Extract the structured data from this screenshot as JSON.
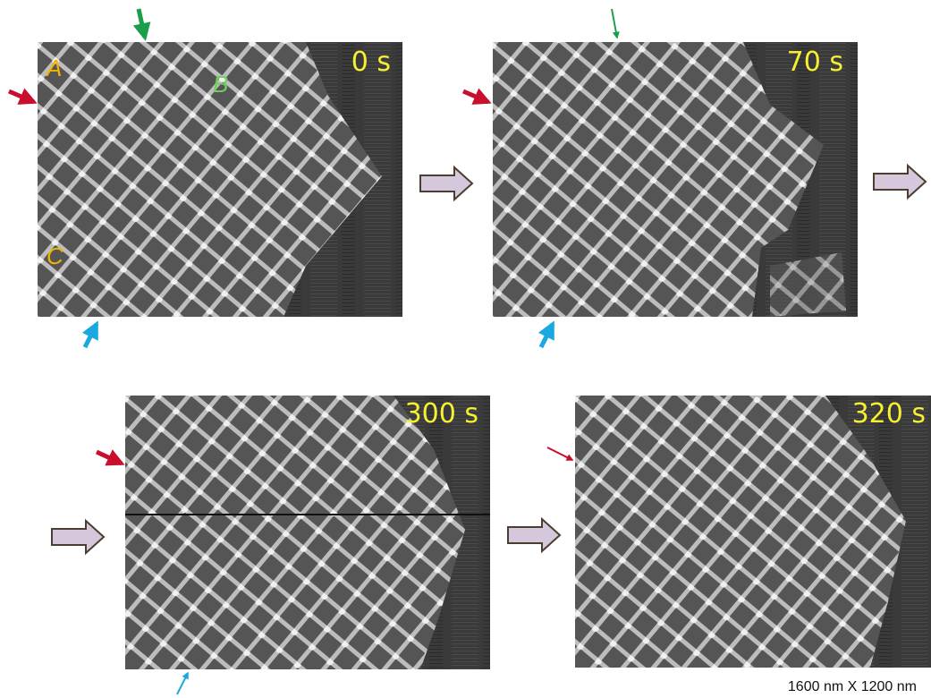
{
  "panels": [
    {
      "time": "0 s",
      "labels": [
        "A",
        "B",
        "C"
      ]
    },
    {
      "time": "70 s"
    },
    {
      "time": "300 s"
    },
    {
      "time": "320 s"
    }
  ],
  "caption": "1600 nm X 1200 nm"
}
